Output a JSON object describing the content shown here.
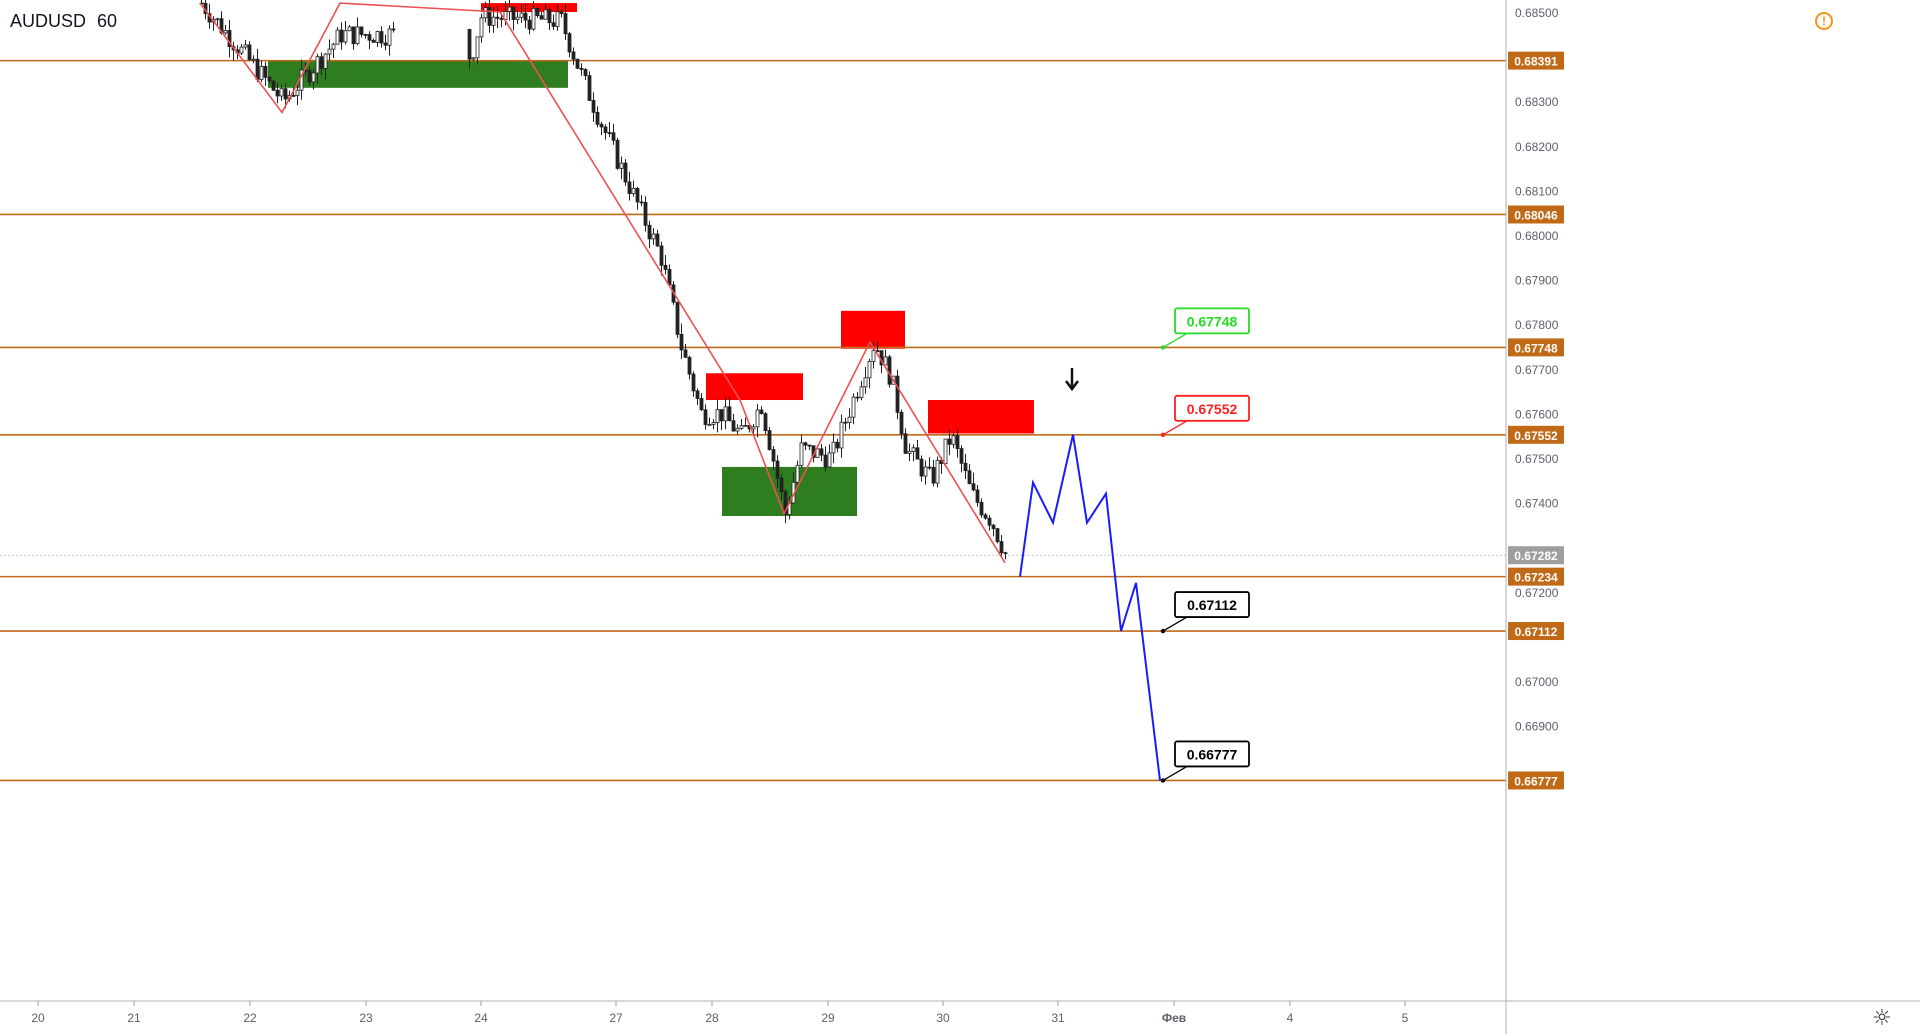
{
  "symbol": {
    "name": "AUDUSD",
    "interval": "60"
  },
  "chart_data": {
    "type": "candlestick",
    "price_axis": {
      "min": 0.6675,
      "max": 0.6852,
      "ticks": [
        "0.68500",
        "0.68300",
        "0.68200",
        "0.68100",
        "0.68000",
        "0.67900",
        "0.67800",
        "0.67700",
        "0.67600",
        "0.67500",
        "0.67400",
        "0.67200",
        "0.67000",
        "0.66900"
      ],
      "tick_values": [
        0.685,
        0.683,
        0.682,
        0.681,
        0.68,
        0.679,
        0.678,
        0.677,
        0.676,
        0.675,
        0.674,
        0.672,
        0.67,
        0.669
      ]
    },
    "time_axis": {
      "labels": [
        "20",
        "21",
        "22",
        "23",
        "24",
        "27",
        "28",
        "29",
        "30",
        "31",
        "Фев",
        "4",
        "5"
      ]
    },
    "current_price": {
      "value": 0.67282,
      "label": "0.67282"
    },
    "levels": [
      {
        "value": 0.68391,
        "label": "0.68391"
      },
      {
        "value": 0.68046,
        "label": "0.68046"
      },
      {
        "value": 0.67748,
        "label": "0.67748"
      },
      {
        "value": 0.67552,
        "label": "0.67552"
      },
      {
        "value": 0.67234,
        "label": "0.67234"
      },
      {
        "value": 0.67112,
        "label": "0.67112"
      },
      {
        "value": 0.66777,
        "label": "0.66777"
      }
    ],
    "callouts": [
      {
        "label": "0.67748",
        "value": 0.67748,
        "color": "#22dd22"
      },
      {
        "label": "0.67552",
        "value": 0.67552,
        "color": "#ff2020"
      },
      {
        "label": "0.67112",
        "value": 0.67112,
        "color": "#000000"
      },
      {
        "label": "0.66777",
        "value": 0.66777,
        "color": "#000000"
      }
    ],
    "zones": [
      {
        "kind": "supply",
        "price_top": 0.6852,
        "price_bottom": 0.685
      },
      {
        "kind": "demand",
        "price_top": 0.68391,
        "price_bottom": 0.6833
      },
      {
        "kind": "supply",
        "price_top": 0.6769,
        "price_bottom": 0.6763
      },
      {
        "kind": "demand",
        "price_top": 0.6748,
        "price_bottom": 0.6737
      },
      {
        "kind": "supply",
        "price_top": 0.6783,
        "price_bottom": 0.67745
      },
      {
        "kind": "supply",
        "price_top": 0.6763,
        "price_bottom": 0.67555
      }
    ],
    "zigzag_prices": [
      0.6852,
      0.68275,
      0.6852,
      0.685,
      0.6763,
      0.67375,
      0.6776,
      0.67265
    ],
    "forecast_prices": [
      0.67234,
      0.67445,
      0.67355,
      0.67552,
      0.67355,
      0.6742,
      0.67112,
      0.6722,
      0.66777
    ],
    "colors": {
      "level": "#c06a18",
      "supply": "#ff0000",
      "demand": "#2e7d1f",
      "zigzag": "#f05050",
      "forecast": "#1a1aff",
      "candle": "#222222",
      "current": "#9e9e9e"
    }
  }
}
